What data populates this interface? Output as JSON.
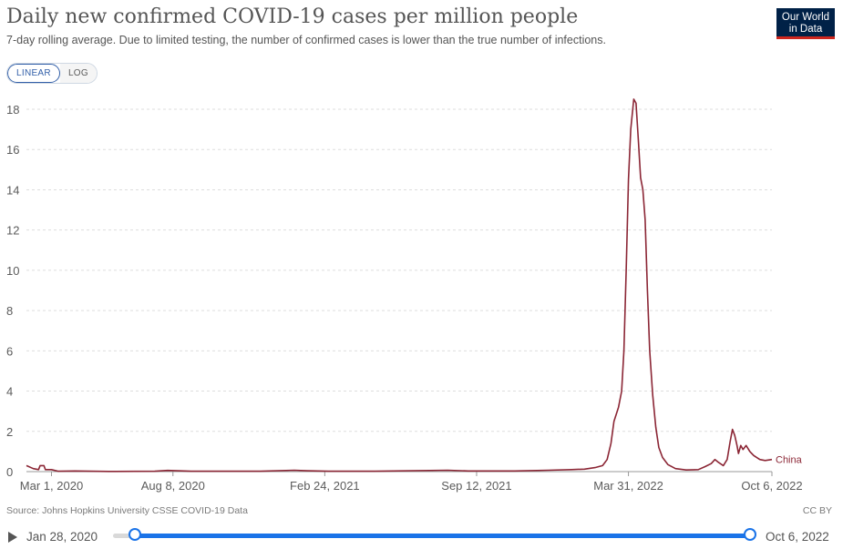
{
  "header": {
    "title": "Daily new confirmed COVID-19 cases per million people",
    "subtitle": "7-day rolling average. Due to limited testing, the number of confirmed cases is lower than the true number of infections.",
    "logo_line1": "Our World",
    "logo_line2": "in Data"
  },
  "controls": {
    "linear_label": "LINEAR",
    "log_label": "LOG",
    "active": "LINEAR"
  },
  "chart_data": {
    "type": "line",
    "title": "Daily new confirmed COVID-19 cases per million people",
    "subtitle": "7-day rolling average. Due to limited testing, the number of confirmed cases is lower than the true number of infections.",
    "xlabel": "",
    "ylabel": "",
    "x_range": [
      "2020-01-28",
      "2022-10-06"
    ],
    "ylim": [
      0,
      18
    ],
    "y_ticks": [
      0,
      2,
      4,
      6,
      8,
      10,
      12,
      14,
      16,
      18
    ],
    "x_ticks": [
      "2020-03-01",
      "2020-08-08",
      "2021-02-24",
      "2021-09-12",
      "2022-03-31",
      "2022-10-06"
    ],
    "x_tick_labels": [
      "Mar 1, 2020",
      "Aug 8, 2020",
      "Feb 24, 2021",
      "Sep 12, 2021",
      "Mar 31, 2022",
      "Oct 6, 2022"
    ],
    "grid": true,
    "legend": "end-of-line label",
    "series": [
      {
        "name": "China",
        "color": "#8b2635",
        "points": [
          [
            "2020-01-28",
            0.3
          ],
          [
            "2020-02-06",
            0.15
          ],
          [
            "2020-02-13",
            0.1
          ],
          [
            "2020-02-15",
            0.3
          ],
          [
            "2020-02-20",
            0.3
          ],
          [
            "2020-02-22",
            0.1
          ],
          [
            "2020-03-01",
            0.1
          ],
          [
            "2020-03-10",
            0.02
          ],
          [
            "2020-04-01",
            0.03
          ],
          [
            "2020-05-15",
            0.01
          ],
          [
            "2020-07-15",
            0.02
          ],
          [
            "2020-08-01",
            0.06
          ],
          [
            "2020-09-01",
            0.02
          ],
          [
            "2020-12-01",
            0.02
          ],
          [
            "2021-01-15",
            0.07
          ],
          [
            "2021-02-01",
            0.04
          ],
          [
            "2021-03-01",
            0.02
          ],
          [
            "2021-05-01",
            0.02
          ],
          [
            "2021-08-05",
            0.07
          ],
          [
            "2021-09-01",
            0.03
          ],
          [
            "2021-11-01",
            0.03
          ],
          [
            "2021-12-15",
            0.07
          ],
          [
            "2022-01-15",
            0.1
          ],
          [
            "2022-02-01",
            0.12
          ],
          [
            "2022-02-15",
            0.2
          ],
          [
            "2022-02-25",
            0.3
          ],
          [
            "2022-03-03",
            0.6
          ],
          [
            "2022-03-08",
            1.4
          ],
          [
            "2022-03-12",
            2.5
          ],
          [
            "2022-03-18",
            3.2
          ],
          [
            "2022-03-22",
            4.0
          ],
          [
            "2022-03-25",
            6.0
          ],
          [
            "2022-03-28",
            10.0
          ],
          [
            "2022-03-31",
            14.5
          ],
          [
            "2022-04-03",
            17.0
          ],
          [
            "2022-04-07",
            18.5
          ],
          [
            "2022-04-10",
            18.3
          ],
          [
            "2022-04-13",
            16.5
          ],
          [
            "2022-04-16",
            14.6
          ],
          [
            "2022-04-19",
            14.0
          ],
          [
            "2022-04-22",
            12.5
          ],
          [
            "2022-04-25",
            9.0
          ],
          [
            "2022-04-28",
            6.0
          ],
          [
            "2022-05-02",
            3.8
          ],
          [
            "2022-05-06",
            2.2
          ],
          [
            "2022-05-10",
            1.2
          ],
          [
            "2022-05-15",
            0.7
          ],
          [
            "2022-05-22",
            0.35
          ],
          [
            "2022-06-01",
            0.15
          ],
          [
            "2022-06-15",
            0.08
          ],
          [
            "2022-07-01",
            0.1
          ],
          [
            "2022-07-10",
            0.25
          ],
          [
            "2022-07-18",
            0.4
          ],
          [
            "2022-07-23",
            0.6
          ],
          [
            "2022-07-28",
            0.45
          ],
          [
            "2022-08-03",
            0.3
          ],
          [
            "2022-08-08",
            0.6
          ],
          [
            "2022-08-12",
            1.5
          ],
          [
            "2022-08-15",
            2.1
          ],
          [
            "2022-08-18",
            1.8
          ],
          [
            "2022-08-21",
            1.3
          ],
          [
            "2022-08-23",
            0.9
          ],
          [
            "2022-08-26",
            1.3
          ],
          [
            "2022-08-29",
            1.1
          ],
          [
            "2022-09-02",
            1.3
          ],
          [
            "2022-09-07",
            1.0
          ],
          [
            "2022-09-12",
            0.8
          ],
          [
            "2022-09-20",
            0.6
          ],
          [
            "2022-09-27",
            0.55
          ],
          [
            "2022-10-06",
            0.6
          ]
        ]
      }
    ]
  },
  "footer": {
    "source": "Source: Johns Hopkins University CSSE COVID-19 Data",
    "license": "CC BY"
  },
  "timeline": {
    "start_label": "Jan 28, 2020",
    "end_label": "Oct 6, 2022",
    "start_value": "2020-01-28",
    "end_value": "2022-10-06"
  }
}
